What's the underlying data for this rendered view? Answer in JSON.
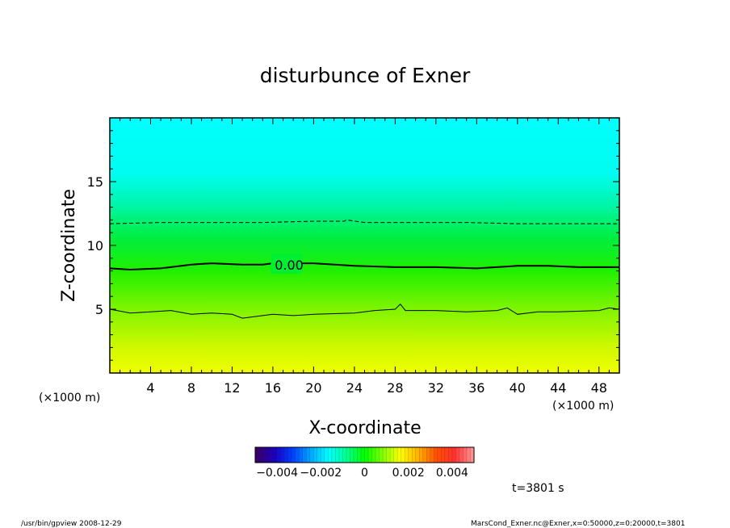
{
  "chart_data": {
    "type": "heatmap",
    "title": "disturbunce of Exner",
    "xlabel": "X-coordinate",
    "ylabel": "Z-coordinate",
    "x_unit_left": "(×1000 m)",
    "x_unit_right": "(×1000 m)",
    "xlim": [
      0,
      50
    ],
    "ylim": [
      0,
      20
    ],
    "x_ticks": [
      4,
      8,
      12,
      16,
      20,
      24,
      28,
      32,
      36,
      40,
      44,
      48
    ],
    "x_tick_labels": [
      "4",
      "8",
      "12",
      "16",
      "20",
      "24",
      "28",
      "32",
      "36",
      "40",
      "44",
      "48"
    ],
    "y_ticks": [
      5,
      10,
      15
    ],
    "y_tick_labels": [
      "5",
      "10",
      "15"
    ],
    "contour_label": "0.00",
    "contours": [
      {
        "level": "positive",
        "style": "solid-thin",
        "points": [
          [
            0,
            5.0
          ],
          [
            2,
            4.7
          ],
          [
            4,
            4.8
          ],
          [
            6,
            4.9
          ],
          [
            8,
            4.6
          ],
          [
            10,
            4.7
          ],
          [
            12,
            4.6
          ],
          [
            13,
            4.3
          ],
          [
            14,
            4.4
          ],
          [
            16,
            4.6
          ],
          [
            18,
            4.5
          ],
          [
            20,
            4.6
          ],
          [
            24,
            4.7
          ],
          [
            26,
            4.9
          ],
          [
            28,
            5.0
          ],
          [
            28.5,
            5.4
          ],
          [
            29,
            4.9
          ],
          [
            32,
            4.9
          ],
          [
            35,
            4.8
          ],
          [
            38,
            4.9
          ],
          [
            39,
            5.1
          ],
          [
            40,
            4.6
          ],
          [
            42,
            4.8
          ],
          [
            44,
            4.8
          ],
          [
            48,
            4.9
          ],
          [
            49,
            5.1
          ],
          [
            50,
            5.0
          ]
        ]
      },
      {
        "level": "zero",
        "style": "solid-thick",
        "points": [
          [
            0,
            8.2
          ],
          [
            2,
            8.1
          ],
          [
            5,
            8.2
          ],
          [
            8,
            8.5
          ],
          [
            10,
            8.6
          ],
          [
            13,
            8.5
          ],
          [
            15,
            8.5
          ],
          [
            16,
            8.6
          ],
          [
            20,
            8.6
          ],
          [
            24,
            8.4
          ],
          [
            28,
            8.3
          ],
          [
            32,
            8.3
          ],
          [
            36,
            8.2
          ],
          [
            40,
            8.4
          ],
          [
            43,
            8.4
          ],
          [
            46,
            8.3
          ],
          [
            50,
            8.3
          ]
        ]
      },
      {
        "level": "negative",
        "style": "dashed",
        "points": [
          [
            0,
            11.7
          ],
          [
            5,
            11.8
          ],
          [
            10,
            11.8
          ],
          [
            15,
            11.8
          ],
          [
            20,
            11.9
          ],
          [
            23,
            11.9
          ],
          [
            23.2,
            12.0
          ],
          [
            25,
            11.8
          ],
          [
            30,
            11.8
          ],
          [
            35,
            11.8
          ],
          [
            40,
            11.7
          ],
          [
            45,
            11.7
          ],
          [
            50,
            11.7
          ]
        ]
      }
    ],
    "colorbar": {
      "range": [
        -0.005,
        0.005
      ],
      "tick_values": [
        -0.004,
        -0.002,
        0,
        0.002,
        0.004
      ],
      "tick_labels": [
        "−0.004",
        "−0.002",
        "0",
        "0.002",
        "0.004"
      ],
      "colors": [
        "#3a006a",
        "#1a00c0",
        "#0040ff",
        "#00a8ff",
        "#00ffff",
        "#00ff90",
        "#00ff00",
        "#80ff00",
        "#ffff00",
        "#ffb000",
        "#ff5000",
        "#ff3030",
        "#ff9090"
      ]
    },
    "legend": "none",
    "grid": false
  },
  "time_label": "t=3801 s",
  "footer_left": "/usr/bin/gpview  2008-12-29",
  "footer_right": "MarsCond_Exner.nc@Exner,x=0:50000,z=0:20000,t=3801"
}
